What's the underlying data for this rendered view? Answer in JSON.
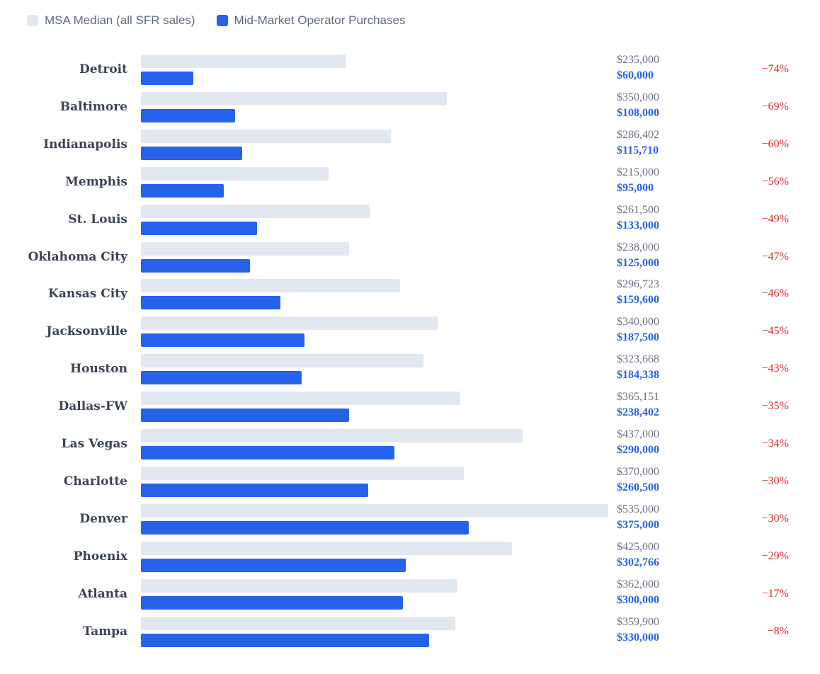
{
  "chart_data": {
    "type": "bar",
    "orientation": "horizontal",
    "title": "",
    "xlabel": "",
    "ylabel": "",
    "xlim": [
      0,
      535000
    ],
    "grid": false,
    "legend_placement": "top-left",
    "colors": {
      "msa": "#e2e8f0",
      "operator": "#2563eb",
      "discount": "#dc2626"
    },
    "series": [
      {
        "name": "MSA Median (all SFR sales)",
        "key": "msa"
      },
      {
        "name": "Mid-Market Operator Purchases",
        "key": "operator"
      }
    ],
    "categories": [
      "Detroit",
      "Baltimore",
      "Indianapolis",
      "Memphis",
      "St. Louis",
      "Oklahoma City",
      "Kansas City",
      "Jacksonville",
      "Houston",
      "Dallas-FW",
      "Las Vegas",
      "Charlotte",
      "Denver",
      "Phoenix",
      "Atlanta",
      "Tampa"
    ],
    "rows": [
      {
        "city": "Detroit",
        "msa": 235000,
        "op": 60000,
        "msa_label": "$235,000",
        "op_label": "$60,000",
        "pct": "−74%"
      },
      {
        "city": "Baltimore",
        "msa": 350000,
        "op": 108000,
        "msa_label": "$350,000",
        "op_label": "$108,000",
        "pct": "−69%"
      },
      {
        "city": "Indianapolis",
        "msa": 286402,
        "op": 115710,
        "msa_label": "$286,402",
        "op_label": "$115,710",
        "pct": "−60%"
      },
      {
        "city": "Memphis",
        "msa": 215000,
        "op": 95000,
        "msa_label": "$215,000",
        "op_label": "$95,000",
        "pct": "−56%"
      },
      {
        "city": "St. Louis",
        "msa": 261500,
        "op": 133000,
        "msa_label": "$261,500",
        "op_label": "$133,000",
        "pct": "−49%"
      },
      {
        "city": "Oklahoma City",
        "msa": 238000,
        "op": 125000,
        "msa_label": "$238,000",
        "op_label": "$125,000",
        "pct": "−47%"
      },
      {
        "city": "Kansas City",
        "msa": 296723,
        "op": 159600,
        "msa_label": "$296,723",
        "op_label": "$159,600",
        "pct": "−46%"
      },
      {
        "city": "Jacksonville",
        "msa": 340000,
        "op": 187500,
        "msa_label": "$340,000",
        "op_label": "$187,500",
        "pct": "−45%"
      },
      {
        "city": "Houston",
        "msa": 323668,
        "op": 184338,
        "msa_label": "$323,668",
        "op_label": "$184,338",
        "pct": "−43%"
      },
      {
        "city": "Dallas-FW",
        "msa": 365151,
        "op": 238402,
        "msa_label": "$365,151",
        "op_label": "$238,402",
        "pct": "−35%"
      },
      {
        "city": "Las Vegas",
        "msa": 437000,
        "op": 290000,
        "msa_label": "$437,000",
        "op_label": "$290,000",
        "pct": "−34%"
      },
      {
        "city": "Charlotte",
        "msa": 370000,
        "op": 260500,
        "msa_label": "$370,000",
        "op_label": "$260,500",
        "pct": "−30%"
      },
      {
        "city": "Denver",
        "msa": 535000,
        "op": 375000,
        "msa_label": "$535,000",
        "op_label": "$375,000",
        "pct": "−30%"
      },
      {
        "city": "Phoenix",
        "msa": 425000,
        "op": 302766,
        "msa_label": "$425,000",
        "op_label": "$302,766",
        "pct": "−29%"
      },
      {
        "city": "Atlanta",
        "msa": 362000,
        "op": 300000,
        "msa_label": "$362,000",
        "op_label": "$300,000",
        "pct": "−17%"
      },
      {
        "city": "Tampa",
        "msa": 359900,
        "op": 330000,
        "msa_label": "$359,900",
        "op_label": "$330,000",
        "pct": "−8%"
      }
    ]
  }
}
